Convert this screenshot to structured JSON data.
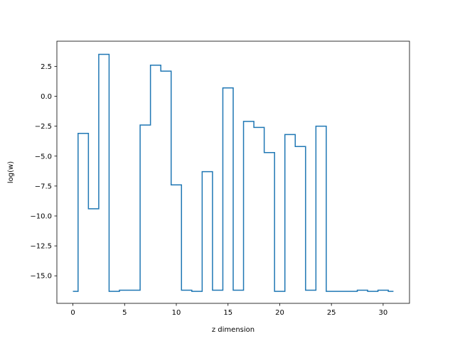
{
  "chart_data": {
    "type": "line",
    "drawstyle": "steps-mid",
    "title": "",
    "xlabel": "z dimension",
    "ylabel": "log(w)",
    "xlim": [
      -1.55,
      32.55
    ],
    "ylim": [
      -17.3,
      4.6
    ],
    "x_ticks": [
      0,
      5,
      10,
      15,
      20,
      25,
      30
    ],
    "x_tick_labels": [
      "0",
      "5",
      "10",
      "15",
      "20",
      "25",
      "30"
    ],
    "y_ticks": [
      2.5,
      0.0,
      -2.5,
      -5.0,
      -7.5,
      -10.0,
      -12.5,
      -15.0
    ],
    "y_tick_labels": [
      "2.5",
      "0.0",
      "−2.5",
      "−5.0",
      "−7.5",
      "−10.0",
      "−12.5",
      "−15.0"
    ],
    "grid": false,
    "legend": "none",
    "series": [
      {
        "color": "#1f77b4",
        "x": [
          0,
          1,
          2,
          3,
          4,
          5,
          6,
          7,
          8,
          9,
          10,
          11,
          12,
          13,
          14,
          15,
          16,
          17,
          18,
          19,
          20,
          21,
          22,
          23,
          24,
          25,
          26,
          27,
          28,
          29,
          30,
          31
        ],
        "y": [
          -16.3,
          -3.1,
          -9.4,
          3.5,
          -16.3,
          -16.2,
          -16.2,
          -2.4,
          2.6,
          2.1,
          -7.4,
          -16.2,
          -16.3,
          -6.3,
          -16.2,
          0.7,
          -16.2,
          -2.1,
          -2.6,
          -4.7,
          -16.3,
          -3.2,
          -4.2,
          -16.2,
          -2.5,
          -16.3,
          -16.3,
          -16.3,
          -16.2,
          -16.3,
          -16.2,
          -16.3
        ]
      }
    ]
  }
}
